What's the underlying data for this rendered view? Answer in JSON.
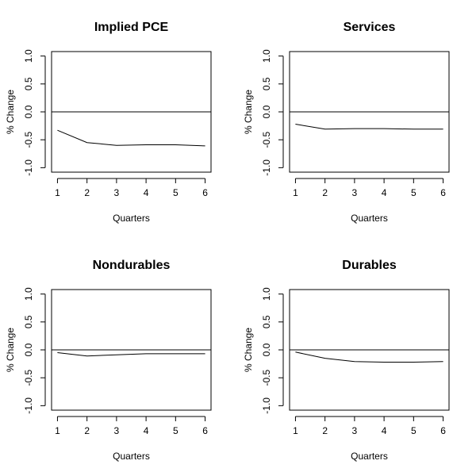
{
  "chart_data": [
    {
      "type": "line",
      "title": "Implied PCE",
      "xlabel": "Quarters",
      "ylabel": "% Change",
      "xlim": [
        1,
        6
      ],
      "ylim": [
        -1,
        1
      ],
      "x_ticks": [
        "1",
        "2",
        "3",
        "4",
        "5",
        "6"
      ],
      "y_ticks": [
        "-1.0",
        "-0.5",
        "0.0",
        "0.5",
        "1.0"
      ],
      "reference_line_y": 0,
      "grid": false,
      "x": [
        1,
        2,
        3,
        4,
        5,
        6
      ],
      "values": [
        -0.33,
        -0.55,
        -0.6,
        -0.59,
        -0.59,
        -0.61
      ]
    },
    {
      "type": "line",
      "title": "Services",
      "xlabel": "Quarters",
      "ylabel": "% Change",
      "xlim": [
        1,
        6
      ],
      "ylim": [
        -1,
        1
      ],
      "x_ticks": [
        "1",
        "2",
        "3",
        "4",
        "5",
        "6"
      ],
      "y_ticks": [
        "-1.0",
        "-0.5",
        "0.0",
        "0.5",
        "1.0"
      ],
      "reference_line_y": 0,
      "grid": false,
      "x": [
        1,
        2,
        3,
        4,
        5,
        6
      ],
      "values": [
        -0.22,
        -0.31,
        -0.3,
        -0.3,
        -0.31,
        -0.31
      ]
    },
    {
      "type": "line",
      "title": "Nondurables",
      "xlabel": "Quarters",
      "ylabel": "% Change",
      "xlim": [
        1,
        6
      ],
      "ylim": [
        -1,
        1
      ],
      "x_ticks": [
        "1",
        "2",
        "3",
        "4",
        "5",
        "6"
      ],
      "y_ticks": [
        "-1.0",
        "-0.5",
        "0.0",
        "0.5",
        "1.0"
      ],
      "reference_line_y": 0,
      "grid": false,
      "x": [
        1,
        2,
        3,
        4,
        5,
        6
      ],
      "values": [
        -0.05,
        -0.11,
        -0.09,
        -0.07,
        -0.07,
        -0.07
      ]
    },
    {
      "type": "line",
      "title": "Durables",
      "xlabel": "Quarters",
      "ylabel": "% Change",
      "xlim": [
        1,
        6
      ],
      "ylim": [
        -1,
        1
      ],
      "x_ticks": [
        "1",
        "2",
        "3",
        "4",
        "5",
        "6"
      ],
      "y_ticks": [
        "-1.0",
        "-0.5",
        "0.0",
        "0.5",
        "1.0"
      ],
      "reference_line_y": 0,
      "grid": false,
      "x": [
        1,
        2,
        3,
        4,
        5,
        6
      ],
      "values": [
        -0.04,
        -0.15,
        -0.21,
        -0.22,
        -0.22,
        -0.21
      ]
    }
  ]
}
